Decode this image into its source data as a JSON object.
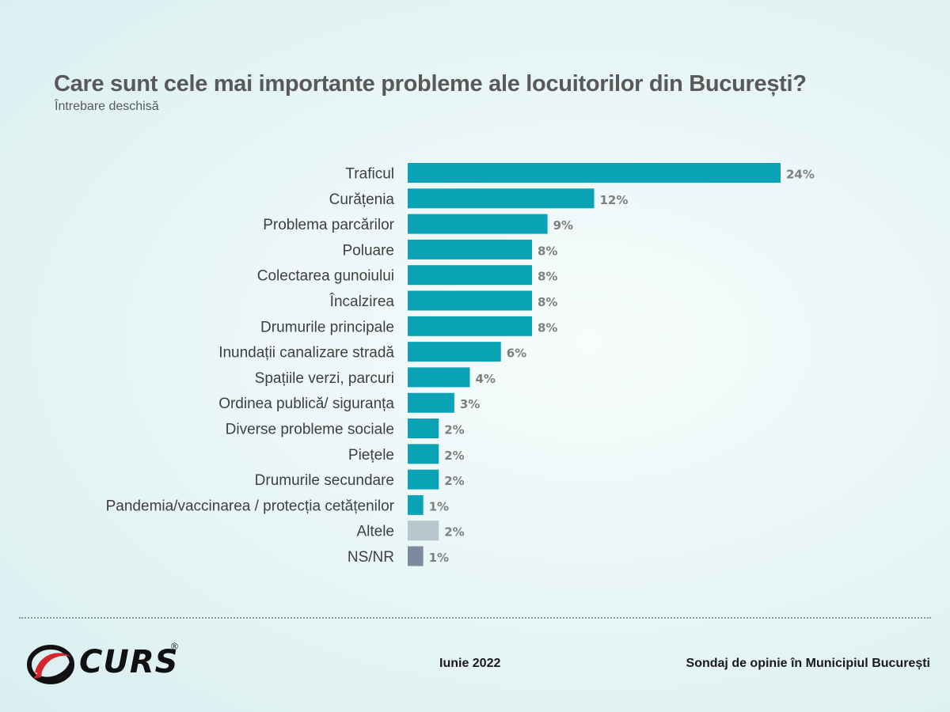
{
  "header": {
    "title": "Care sunt cele mai importante probleme ale locuitorilor din București?",
    "subtitle": "Întrebare deschisă"
  },
  "chart_data": {
    "type": "bar",
    "orientation": "horizontal",
    "title": "Care sunt cele mai importante probleme ale locuitorilor din București?",
    "subtitle": "Întrebare deschisă",
    "categories": [
      "Traficul",
      "Curățenia",
      "Problema parcărilor",
      "Poluare",
      "Colectarea gunoiului",
      "Încalzirea",
      "Drumurile principale",
      "Inundații canalizare stradă",
      "Spațiile verzi, parcuri",
      "Ordinea publică/ siguranța",
      "Diverse probleme sociale",
      "Piețele",
      "Drumurile secundare",
      "Pandemia/vaccinarea / protecția cetățenilor",
      "Altele",
      "NS/NR"
    ],
    "values": [
      24,
      12,
      9,
      8,
      8,
      8,
      8,
      6,
      4,
      3,
      2,
      2,
      2,
      1,
      2,
      1
    ],
    "value_labels": [
      "24%",
      "12%",
      "9%",
      "8%",
      "8%",
      "8%",
      "8%",
      "6%",
      "4%",
      "3%",
      "2%",
      "2%",
      "2%",
      "1%",
      "2%",
      "1%"
    ],
    "unit": "%",
    "xlim": [
      0,
      24
    ],
    "grid": false,
    "colors": {
      "main": "#0aa3b5",
      "altele": "#b8c6cd",
      "nsnr": "#7d8a9d"
    }
  },
  "footer": {
    "date": "Iunie 2022",
    "source": "Sondaj de opinie în Municipiul București"
  },
  "logo": {
    "text": "CURS",
    "registered": "®"
  }
}
